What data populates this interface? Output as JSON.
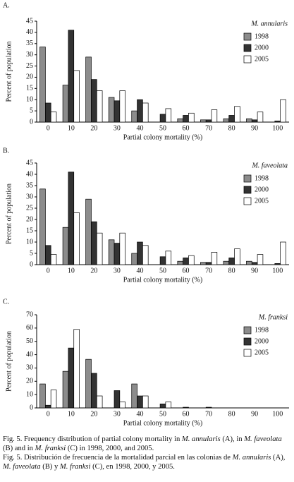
{
  "chart_data": [
    {
      "type": "bar",
      "panel": "A.",
      "legend_title": "M. annularis",
      "xlabel": "Partial colony mortality (%)",
      "ylabel": "Percent of population",
      "categories": [
        "0",
        "10",
        "20",
        "30",
        "40",
        "50",
        "60",
        "70",
        "80",
        "90",
        "100"
      ],
      "series": [
        {
          "name": "1998",
          "color": "#8c8c8c",
          "values": [
            33.5,
            16.5,
            29,
            11,
            5,
            0,
            1.5,
            1,
            1.5,
            1.5,
            0
          ]
        },
        {
          "name": "2000",
          "color": "#333333",
          "values": [
            8.5,
            41,
            19,
            9.5,
            10,
            3.5,
            3,
            1,
            3,
            1,
            0.5
          ]
        },
        {
          "name": "2005",
          "color": "#ffffff",
          "values": [
            4.5,
            23,
            14,
            14,
            8.5,
            6,
            4,
            5.5,
            7,
            4.5,
            10
          ]
        }
      ],
      "ylim": [
        0,
        45
      ],
      "yticks": [
        0,
        5,
        10,
        15,
        20,
        25,
        30,
        35,
        40,
        45
      ]
    },
    {
      "type": "bar",
      "panel": "B.",
      "legend_title": "M. faveolata",
      "xlabel": "Partial colony mortality (%)",
      "ylabel": "Percent of population",
      "categories": [
        "0",
        "10",
        "20",
        "30",
        "40",
        "50",
        "60",
        "70",
        "80",
        "90",
        "100"
      ],
      "series": [
        {
          "name": "1998",
          "color": "#8c8c8c",
          "values": [
            33.5,
            16.5,
            29,
            11,
            5,
            0,
            1.5,
            1,
            1.5,
            1.5,
            0
          ]
        },
        {
          "name": "2000",
          "color": "#333333",
          "values": [
            8.5,
            41,
            19,
            9.5,
            10,
            3.5,
            3,
            1,
            3,
            1,
            0.5
          ]
        },
        {
          "name": "2005",
          "color": "#ffffff",
          "values": [
            4.5,
            23,
            14,
            14,
            8.5,
            6,
            4,
            5.5,
            7,
            4.5,
            10
          ]
        }
      ],
      "ylim": [
        0,
        45
      ],
      "yticks": [
        0,
        5,
        10,
        15,
        20,
        25,
        30,
        35,
        40,
        45
      ]
    },
    {
      "type": "bar",
      "panel": "C.",
      "legend_title": "M. franksi",
      "xlabel": "Partial colony mortality (%)",
      "ylabel": "Percent of population",
      "categories": [
        "0",
        "10",
        "20",
        "30",
        "40",
        "50",
        "60",
        "70",
        "80",
        "90",
        "100"
      ],
      "series": [
        {
          "name": "1998",
          "color": "#8c8c8c",
          "values": [
            18,
            27.5,
            36.5,
            0,
            18,
            0,
            0,
            0,
            0,
            0,
            0
          ]
        },
        {
          "name": "2000",
          "color": "#333333",
          "values": [
            2,
            45,
            26,
            13,
            9,
            3,
            0.5,
            0.5,
            0,
            0,
            0
          ]
        },
        {
          "name": "2005",
          "color": "#ffffff",
          "values": [
            13.5,
            59,
            9,
            4.5,
            9,
            4.5,
            0,
            0,
            0,
            0,
            0
          ]
        }
      ],
      "ylim": [
        0,
        70
      ],
      "yticks": [
        0,
        10,
        20,
        30,
        40,
        50,
        60,
        70
      ]
    }
  ],
  "caption": {
    "english": [
      "Fig. 5. Frequency distribution of partial colony mortality in ",
      "M. annularis",
      " (A), in ",
      "M. faveolata",
      " (B) and in ",
      "M. franksi",
      " (C) in 1998, 2000, and 2005."
    ],
    "spanish": [
      "Fig. 5. Distribución de frecuencia de la mortalidad parcial en las colonias de ",
      "M. annularis",
      " (A), ",
      "M. faveolata",
      " (B) y ",
      "M. franksi",
      " (C), en 1998, 2000, y 2005."
    ]
  }
}
